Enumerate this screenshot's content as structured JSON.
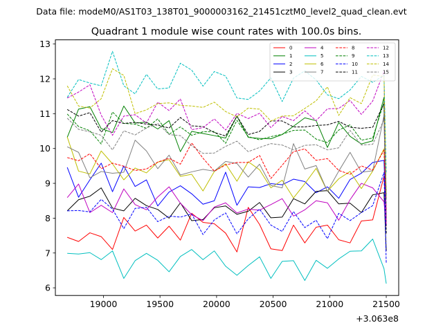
{
  "suptitle": "Data file: modeM0/AS1T03_138T01_9000003162_21451cztM0_level2_quad_clean.evt",
  "chart_data": {
    "type": "line",
    "title": "Quadrant 1 module wise count rates with 100.0s bins.",
    "xlabel": "",
    "ylabel": "",
    "offset_text": "+3.063e8",
    "xlim": [
      18575,
      21610
    ],
    "ylim": [
      5.78,
      13.12
    ],
    "xticks": [
      19000,
      19500,
      20000,
      20500,
      21000,
      21500
    ],
    "yticks": [
      6,
      7,
      8,
      9,
      10,
      11,
      12,
      13
    ],
    "legend_position": "upper-right",
    "x": [
      18680,
      18780,
      18880,
      18980,
      19080,
      19180,
      19280,
      19380,
      19480,
      19580,
      19680,
      19780,
      19880,
      19980,
      20080,
      20180,
      20280,
      20380,
      20480,
      20580,
      20680,
      20780,
      20880,
      20980,
      21080,
      21180,
      21280,
      21380,
      21480
    ],
    "series": [
      {
        "name": "0",
        "color": "#ff0000",
        "dash": "solid",
        "values": [
          7.45,
          7.33,
          7.58,
          7.47,
          7.1,
          8.02,
          7.63,
          7.8,
          7.43,
          7.77,
          7.37,
          8.14,
          7.88,
          7.84,
          7.57,
          7.03,
          8.31,
          7.82,
          7.12,
          7.07,
          7.8,
          7.29,
          7.74,
          7.8,
          7.38,
          7.29,
          7.92,
          7.95,
          9.2
        ]
      },
      {
        "name": "1",
        "color": "#008000",
        "dash": "solid",
        "values": [
          10.32,
          11.13,
          11.2,
          10.57,
          10.46,
          11.22,
          10.73,
          10.76,
          10.56,
          10.8,
          9.91,
          10.49,
          10.43,
          10.37,
          10.3,
          10.93,
          10.32,
          10.29,
          10.28,
          10.4,
          10.64,
          10.88,
          10.8,
          10.03,
          10.75,
          10.35,
          10.13,
          10.22,
          11.47
        ]
      },
      {
        "name": "2",
        "color": "#0000ff",
        "dash": "solid",
        "values": [
          9.46,
          8.6,
          9.1,
          9.58,
          8.76,
          9.5,
          8.91,
          9.1,
          8.35,
          8.75,
          8.93,
          8.7,
          8.4,
          8.5,
          9.32,
          8.37,
          8.9,
          8.88,
          8.99,
          8.96,
          9.12,
          9.05,
          8.73,
          8.9,
          8.57,
          9.11,
          9.29,
          9.6,
          9.66
        ]
      },
      {
        "name": "3",
        "color": "#000000",
        "dash": "solid",
        "values": [
          8.21,
          8.53,
          8.63,
          8.87,
          8.29,
          8.21,
          8.57,
          8.36,
          8.25,
          8.0,
          8.44,
          7.93,
          7.96,
          8.3,
          8.35,
          8.11,
          8.2,
          8.45,
          8.01,
          8.03,
          8.56,
          8.41,
          8.77,
          8.79,
          8.41,
          8.43,
          8.16,
          8.67,
          8.73
        ]
      },
      {
        "name": "4",
        "color": "#bf00bf",
        "dash": "solid",
        "values": [
          8.59,
          8.98,
          8.16,
          8.37,
          8.16,
          8.84,
          8.39,
          8.24,
          8.61,
          8.9,
          8.43,
          8.1,
          7.93,
          8.32,
          8.44,
          8.15,
          8.26,
          8.23,
          8.39,
          8.56,
          8.06,
          8.24,
          8.5,
          8.44,
          7.94,
          8.53,
          9.0,
          8.87,
          8.47
        ]
      },
      {
        "name": "5",
        "color": "#00bfbf",
        "dash": "solid",
        "values": [
          6.99,
          6.97,
          7.01,
          6.81,
          7.06,
          6.27,
          6.78,
          6.99,
          6.79,
          6.46,
          6.9,
          7.1,
          6.81,
          7.06,
          6.62,
          6.36,
          6.64,
          6.89,
          6.27,
          6.76,
          6.78,
          6.21,
          6.79,
          6.56,
          6.83,
          7.05,
          7.06,
          7.4,
          6.55
        ]
      },
      {
        "name": "6",
        "color": "#bfbf00",
        "dash": "solid",
        "values": [
          10.33,
          9.35,
          9.27,
          9.93,
          9.56,
          9.1,
          9.44,
          9.3,
          9.61,
          9.68,
          9.2,
          9.26,
          8.78,
          9.34,
          9.56,
          9.06,
          9.62,
          9.39,
          8.87,
          9.09,
          8.58,
          8.99,
          9.43,
          8.77,
          9.13,
          9.34,
          8.85,
          9.35,
          9.99
        ]
      },
      {
        "name": "7",
        "color": "#808080",
        "dash": "solid",
        "values": [
          10.05,
          9.89,
          9.16,
          9.34,
          9.29,
          9.32,
          10.24,
          9.93,
          9.42,
          9.81,
          9.24,
          9.33,
          9.4,
          9.35,
          9.63,
          9.57,
          9.18,
          9.55,
          8.94,
          8.87,
          10.14,
          9.41,
          9.51,
          8.77,
          9.35,
          9.89,
          9.32,
          9.36,
          10.94
        ]
      },
      {
        "name": "8",
        "color": "#ff0000",
        "dash": "dashed",
        "values": [
          9.74,
          9.65,
          9.85,
          9.42,
          9.58,
          9.49,
          9.37,
          9.41,
          9.61,
          9.72,
          9.55,
          10.16,
          9.72,
          9.35,
          9.53,
          9.6,
          9.6,
          9.8,
          9.14,
          9.52,
          9.91,
          9.99,
          9.66,
          9.71,
          9.37,
          9.26,
          9.5,
          9.38,
          9.95
        ]
      },
      {
        "name": "9",
        "color": "#008000",
        "dash": "dashed",
        "values": [
          10.99,
          10.63,
          10.51,
          10.13,
          11.05,
          10.72,
          10.7,
          10.58,
          10.85,
          10.41,
          10.62,
          10.38,
          10.48,
          10.49,
          10.15,
          10.81,
          10.34,
          10.25,
          10.34,
          10.41,
          10.52,
          10.53,
          10.27,
          10.17,
          10.53,
          10.68,
          10.24,
          10.3,
          11.33
        ]
      },
      {
        "name": "10",
        "color": "#0000ff",
        "dash": "dashed",
        "values": [
          8.21,
          8.22,
          8.18,
          8.54,
          8.26,
          7.7,
          8.28,
          8.31,
          7.9,
          8.06,
          8.03,
          8.12,
          7.53,
          7.95,
          8.15,
          7.55,
          7.98,
          8.26,
          7.8,
          7.62,
          8.19,
          7.73,
          7.94,
          7.41,
          8.14,
          7.93,
          8.16,
          8.36,
          9.31
        ]
      },
      {
        "name": "11",
        "color": "#000000",
        "dash": "dashed",
        "values": [
          11.12,
          10.93,
          11.03,
          10.47,
          10.8,
          10.72,
          10.75,
          10.7,
          10.67,
          10.59,
          10.89,
          10.65,
          10.63,
          10.46,
          10.36,
          10.93,
          10.4,
          10.49,
          10.79,
          10.79,
          10.62,
          10.62,
          10.66,
          10.68,
          10.78,
          10.61,
          10.58,
          10.61,
          11.29
        ]
      },
      {
        "name": "12",
        "color": "#bf00bf",
        "dash": "dashed",
        "values": [
          11.45,
          11.62,
          11.83,
          10.96,
          10.38,
          10.93,
          10.97,
          10.73,
          11.33,
          11.09,
          11.42,
          10.54,
          10.6,
          10.85,
          10.53,
          11.01,
          10.86,
          11.01,
          10.6,
          10.92,
          10.8,
          11.08,
          10.8,
          11.14,
          11.15,
          11.38,
          10.98,
          11.36,
          12.22
        ]
      },
      {
        "name": "13",
        "color": "#00bfbf",
        "dash": "dashed",
        "values": [
          11.47,
          11.98,
          11.88,
          11.8,
          12.79,
          11.8,
          11.57,
          12.13,
          11.71,
          11.74,
          12.45,
          12.25,
          11.79,
          12.21,
          12.08,
          11.45,
          11.41,
          11.65,
          12.03,
          11.35,
          12.02,
          12.23,
          11.97,
          11.54,
          11.43,
          11.68,
          12.07,
          11.9,
          12.1
        ]
      },
      {
        "name": "14",
        "color": "#bfbf00",
        "dash": "dashed",
        "values": [
          11.8,
          11.22,
          11.16,
          11.43,
          12.29,
          12.1,
          11.0,
          11.11,
          11.29,
          11.31,
          11.24,
          11.22,
          11.18,
          11.33,
          11.06,
          10.91,
          11.16,
          11.13,
          10.79,
          10.93,
          10.94,
          11.15,
          11.37,
          11.77,
          10.95,
          11.46,
          11.29,
          12.11,
          12.07
        ]
      },
      {
        "name": "15",
        "color": "#808080",
        "dash": "dashed",
        "values": [
          10.87,
          10.55,
          10.48,
          10.38,
          9.96,
          10.51,
          10.39,
          10.59,
          10.72,
          10.4,
          10.37,
          10.08,
          9.86,
          9.87,
          10.06,
          10.21,
          9.91,
          10.03,
          10.14,
          10.1,
          9.96,
          10.09,
          10.11,
          9.96,
          10.02,
          10.52,
          10.1,
          10.12,
          10.83
        ]
      }
    ],
    "final_point": {
      "x": 21500,
      "values": [
        7.98,
        8.55,
        7.77,
        7.06,
        7.76,
        6.12,
        8.6,
        8.01,
        8.23,
        8.62,
        6.7,
        7.56,
        7.84,
        9.28,
        8.69,
        8.4
      ]
    }
  }
}
